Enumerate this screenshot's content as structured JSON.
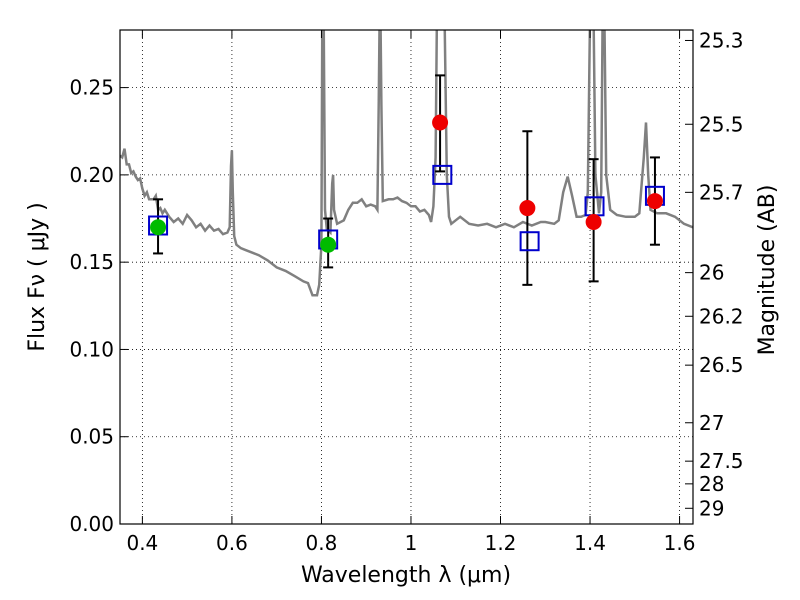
{
  "chart_data": {
    "type": "scatter",
    "title": "",
    "xlabel": "Wavelength  λ (μm)",
    "ylabel": "Flux  Fν (  μJy )",
    "ylabel_right": "Magnitude (AB)",
    "xlim": [
      0.35,
      1.63
    ],
    "ylim": [
      0.0,
      0.283
    ],
    "grid": true,
    "x_ticks": [
      0.4,
      0.6,
      0.8,
      1.0,
      1.2,
      1.4,
      1.6
    ],
    "x_tick_labels": [
      "0.4",
      "0.6",
      "0.8",
      "1",
      "1.2",
      "1.4",
      "1.6"
    ],
    "y_ticks": [
      0.0,
      0.05,
      0.1,
      0.15,
      0.2,
      0.25
    ],
    "y_tick_labels": [
      "0.00",
      "0.05",
      "0.10",
      "0.15",
      "0.20",
      "0.25"
    ],
    "right_ticks": [
      {
        "label": "25.3",
        "flux": 0.277
      },
      {
        "label": "25.5",
        "flux": 0.229
      },
      {
        "label": "25.7",
        "flux": 0.19
      },
      {
        "label": "26",
        "flux": 0.144
      },
      {
        "label": "26.2",
        "flux": 0.119
      },
      {
        "label": "26.5",
        "flux": 0.091
      },
      {
        "label": "27",
        "flux": 0.058
      },
      {
        "label": "27.5",
        "flux": 0.036
      },
      {
        "label": "28",
        "flux": 0.023
      },
      {
        "label": "29",
        "flux": 0.009
      }
    ],
    "colors": {
      "model": "#808080",
      "green_points": "#00bb00",
      "red_points": "#ee0000",
      "model_boxes": "#0000cc",
      "errorbars": "#000000"
    },
    "series": [
      {
        "kind": "line",
        "points": [
          [
            0.35,
            0.211
          ],
          [
            0.355,
            0.21
          ],
          [
            0.36,
            0.215
          ],
          [
            0.365,
            0.206
          ],
          [
            0.37,
            0.206
          ],
          [
            0.375,
            0.201
          ],
          [
            0.38,
            0.202
          ],
          [
            0.385,
            0.199
          ],
          [
            0.39,
            0.197
          ],
          [
            0.395,
            0.198
          ],
          [
            0.4,
            0.192
          ],
          [
            0.405,
            0.188
          ],
          [
            0.41,
            0.19
          ],
          [
            0.415,
            0.186
          ],
          [
            0.42,
            0.186
          ],
          [
            0.425,
            0.186
          ],
          [
            0.43,
            0.188
          ],
          [
            0.435,
            0.18
          ],
          [
            0.44,
            0.181
          ],
          [
            0.445,
            0.178
          ],
          [
            0.45,
            0.18
          ],
          [
            0.46,
            0.176
          ],
          [
            0.47,
            0.173
          ],
          [
            0.48,
            0.175
          ],
          [
            0.49,
            0.172
          ],
          [
            0.5,
            0.177
          ],
          [
            0.51,
            0.174
          ],
          [
            0.52,
            0.17
          ],
          [
            0.53,
            0.172
          ],
          [
            0.54,
            0.168
          ],
          [
            0.55,
            0.171
          ],
          [
            0.56,
            0.168
          ],
          [
            0.57,
            0.169
          ],
          [
            0.58,
            0.166
          ],
          [
            0.59,
            0.167
          ],
          [
            0.595,
            0.17
          ],
          [
            0.598,
            0.205
          ],
          [
            0.6,
            0.214
          ],
          [
            0.602,
            0.19
          ],
          [
            0.605,
            0.165
          ],
          [
            0.61,
            0.16
          ],
          [
            0.62,
            0.158
          ],
          [
            0.63,
            0.157
          ],
          [
            0.64,
            0.156
          ],
          [
            0.66,
            0.154
          ],
          [
            0.68,
            0.151
          ],
          [
            0.7,
            0.147
          ],
          [
            0.72,
            0.145
          ],
          [
            0.74,
            0.142
          ],
          [
            0.76,
            0.139
          ],
          [
            0.77,
            0.138
          ],
          [
            0.78,
            0.131
          ],
          [
            0.79,
            0.131
          ],
          [
            0.795,
            0.137
          ],
          [
            0.8,
            0.16
          ],
          [
            0.802,
            0.29
          ],
          [
            0.805,
            0.29
          ],
          [
            0.808,
            0.18
          ],
          [
            0.812,
            0.169
          ],
          [
            0.82,
            0.167
          ],
          [
            0.824,
            0.195
          ],
          [
            0.826,
            0.2
          ],
          [
            0.828,
            0.18
          ],
          [
            0.835,
            0.172
          ],
          [
            0.85,
            0.174
          ],
          [
            0.86,
            0.18
          ],
          [
            0.87,
            0.184
          ],
          [
            0.88,
            0.184
          ],
          [
            0.89,
            0.186
          ],
          [
            0.9,
            0.182
          ],
          [
            0.91,
            0.183
          ],
          [
            0.92,
            0.182
          ],
          [
            0.925,
            0.18
          ],
          [
            0.928,
            0.24
          ],
          [
            0.93,
            0.29
          ],
          [
            0.932,
            0.29
          ],
          [
            0.934,
            0.24
          ],
          [
            0.937,
            0.185
          ],
          [
            0.95,
            0.186
          ],
          [
            0.96,
            0.186
          ],
          [
            0.97,
            0.187
          ],
          [
            0.98,
            0.185
          ],
          [
            0.99,
            0.184
          ],
          [
            1.0,
            0.182
          ],
          [
            1.01,
            0.182
          ],
          [
            1.02,
            0.179
          ],
          [
            1.03,
            0.18
          ],
          [
            1.04,
            0.177
          ],
          [
            1.045,
            0.173
          ],
          [
            1.05,
            0.182
          ],
          [
            1.055,
            0.21
          ],
          [
            1.058,
            0.29
          ],
          [
            1.075,
            0.29
          ],
          [
            1.08,
            0.2
          ],
          [
            1.085,
            0.176
          ],
          [
            1.09,
            0.172
          ],
          [
            1.1,
            0.174
          ],
          [
            1.11,
            0.176
          ],
          [
            1.13,
            0.172
          ],
          [
            1.15,
            0.171
          ],
          [
            1.17,
            0.172
          ],
          [
            1.19,
            0.17
          ],
          [
            1.21,
            0.172
          ],
          [
            1.23,
            0.17
          ],
          [
            1.25,
            0.173
          ],
          [
            1.27,
            0.171
          ],
          [
            1.29,
            0.173
          ],
          [
            1.3,
            0.173
          ],
          [
            1.32,
            0.172
          ],
          [
            1.33,
            0.174
          ],
          [
            1.34,
            0.19
          ],
          [
            1.35,
            0.199
          ],
          [
            1.36,
            0.188
          ],
          [
            1.37,
            0.176
          ],
          [
            1.38,
            0.176
          ],
          [
            1.39,
            0.177
          ],
          [
            1.395,
            0.19
          ],
          [
            1.4,
            0.29
          ],
          [
            1.408,
            0.29
          ],
          [
            1.412,
            0.2
          ],
          [
            1.42,
            0.178
          ],
          [
            1.425,
            0.19
          ],
          [
            1.428,
            0.29
          ],
          [
            1.432,
            0.29
          ],
          [
            1.436,
            0.2
          ],
          [
            1.445,
            0.18
          ],
          [
            1.46,
            0.177
          ],
          [
            1.48,
            0.176
          ],
          [
            1.5,
            0.176
          ],
          [
            1.51,
            0.178
          ],
          [
            1.52,
            0.21
          ],
          [
            1.525,
            0.23
          ],
          [
            1.53,
            0.2
          ],
          [
            1.535,
            0.18
          ],
          [
            1.55,
            0.178
          ],
          [
            1.57,
            0.178
          ],
          [
            1.59,
            0.176
          ],
          [
            1.61,
            0.172
          ],
          [
            1.63,
            0.17
          ]
        ]
      },
      {
        "kind": "boxes",
        "points": [
          [
            0.435,
            0.171
          ],
          [
            0.815,
            0.163
          ],
          [
            1.07,
            0.2
          ],
          [
            1.265,
            0.162
          ],
          [
            1.41,
            0.182
          ],
          [
            1.545,
            0.188
          ]
        ]
      },
      {
        "kind": "points-green",
        "points": [
          [
            0.435,
            0.17
          ],
          [
            0.815,
            0.16
          ]
        ],
        "errors": [
          [
            0.155,
            0.186
          ],
          [
            0.147,
            0.175
          ]
        ]
      },
      {
        "kind": "points-red",
        "points": [
          [
            1.065,
            0.23
          ],
          [
            1.26,
            0.181
          ],
          [
            1.408,
            0.173
          ],
          [
            1.545,
            0.185
          ]
        ],
        "errors": [
          [
            0.202,
            0.257
          ],
          [
            0.137,
            0.225
          ],
          [
            0.139,
            0.209
          ],
          [
            0.16,
            0.21
          ]
        ]
      }
    ]
  }
}
